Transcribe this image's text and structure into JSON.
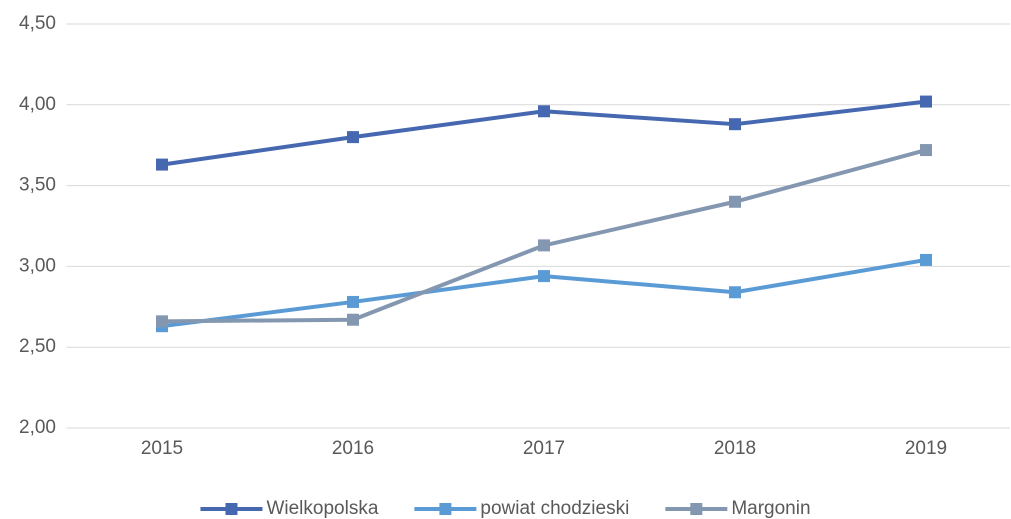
{
  "chart_data": {
    "type": "line",
    "categories": [
      "2015",
      "2016",
      "2017",
      "2018",
      "2019"
    ],
    "series": [
      {
        "name": "Wielkopolska",
        "color": "#4668b0",
        "values": [
          3.63,
          3.8,
          3.96,
          3.88,
          4.02
        ]
      },
      {
        "name": "powiat chodzieski",
        "color": "#5b9bd5",
        "values": [
          2.63,
          2.78,
          2.94,
          2.84,
          3.04
        ]
      },
      {
        "name": "Margonin",
        "color": "#8497b0",
        "values": [
          2.66,
          2.67,
          3.13,
          3.4,
          3.72
        ]
      }
    ],
    "ylim": [
      2,
      4.5
    ],
    "yticks": [
      {
        "value": 2,
        "label": "2,00"
      },
      {
        "value": 2.5,
        "label": "2,50"
      },
      {
        "value": 3,
        "label": "3,00"
      },
      {
        "value": 3.5,
        "label": "3,50"
      },
      {
        "value": 4,
        "label": "4,00"
      },
      {
        "value": 4.5,
        "label": "4,50"
      }
    ],
    "grid": true,
    "legend": "bottom"
  }
}
